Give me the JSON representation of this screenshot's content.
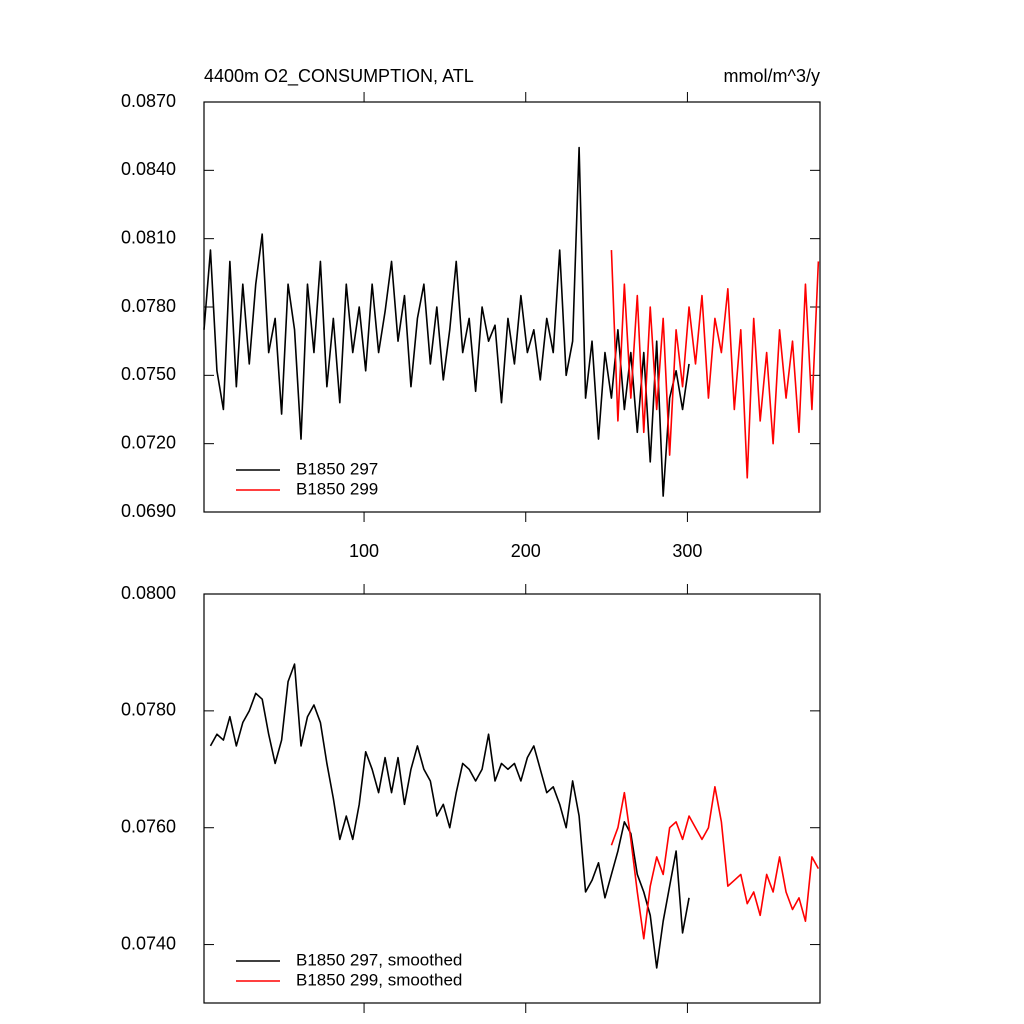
{
  "chart_data": [
    {
      "type": "line",
      "title": "4400m O2_CONSUMPTION, ATL",
      "units": "mmol/m^3/y",
      "legend": "lower left",
      "x": [
        1,
        5,
        9,
        13,
        17,
        21,
        25,
        29,
        33,
        37,
        41,
        45,
        49,
        53,
        57,
        61,
        65,
        69,
        73,
        77,
        81,
        85,
        89,
        93,
        97,
        101,
        105,
        109,
        113,
        117,
        121,
        125,
        129,
        133,
        137,
        141,
        145,
        149,
        153,
        157,
        161,
        165,
        169,
        173,
        177,
        181,
        185,
        189,
        193,
        197,
        201,
        205,
        209,
        213,
        217,
        221,
        225,
        229,
        233,
        237,
        241,
        245,
        249,
        253,
        257,
        261,
        265,
        269,
        273,
        277,
        281,
        285,
        289,
        293,
        297,
        301,
        305,
        309,
        313,
        317,
        321,
        325,
        329,
        333,
        337,
        341,
        345,
        349,
        353,
        357,
        361,
        365,
        369,
        373,
        377,
        381
      ],
      "xlim": [
        1,
        382
      ],
      "xticks": [
        100,
        200,
        300
      ],
      "ylim": [
        0.069,
        0.087
      ],
      "yticks": [
        {
          "value": 0.069,
          "label": "0.0690"
        },
        {
          "value": 0.072,
          "label": "0.0720"
        },
        {
          "value": 0.075,
          "label": "0.0750"
        },
        {
          "value": 0.078,
          "label": "0.0780"
        },
        {
          "value": 0.081,
          "label": "0.0810"
        },
        {
          "value": 0.084,
          "label": "0.0840"
        },
        {
          "value": 0.087,
          "label": "0.0870"
        }
      ],
      "series": [
        {
          "name": "B1850 297",
          "color": "#000000",
          "values": [
            0.077,
            0.0805,
            0.0752,
            0.0735,
            0.08,
            0.0745,
            0.079,
            0.0755,
            0.079,
            0.0812,
            0.076,
            0.0775,
            0.0733,
            0.079,
            0.077,
            0.0722,
            0.079,
            0.076,
            0.08,
            0.0745,
            0.0775,
            0.0738,
            0.079,
            0.076,
            0.078,
            0.0752,
            0.079,
            0.076,
            0.0778,
            0.08,
            0.0765,
            0.0785,
            0.0745,
            0.0775,
            0.079,
            0.0755,
            0.078,
            0.0748,
            0.077,
            0.08,
            0.076,
            0.0775,
            0.0743,
            0.078,
            0.0765,
            0.0772,
            0.0738,
            0.0775,
            0.0755,
            0.0785,
            0.076,
            0.077,
            0.0748,
            0.0775,
            0.076,
            0.0805,
            0.075,
            0.0765,
            0.085,
            0.074,
            0.0765,
            0.0722,
            0.076,
            0.074,
            0.077,
            0.0735,
            0.076,
            0.0725,
            0.076,
            0.0712,
            0.0765,
            0.0697,
            0.074,
            0.0752,
            0.0735,
            0.0755,
            null,
            null,
            null,
            null,
            null,
            null,
            null,
            null,
            null,
            null,
            null,
            null,
            null,
            null,
            null,
            null,
            null,
            null,
            null,
            null
          ]
        },
        {
          "name": "B1850 299",
          "color": "#ff0000",
          "values": [
            null,
            null,
            null,
            null,
            null,
            null,
            null,
            null,
            null,
            null,
            null,
            null,
            null,
            null,
            null,
            null,
            null,
            null,
            null,
            null,
            null,
            null,
            null,
            null,
            null,
            null,
            null,
            null,
            null,
            null,
            null,
            null,
            null,
            null,
            null,
            null,
            null,
            null,
            null,
            null,
            null,
            null,
            null,
            null,
            null,
            null,
            null,
            null,
            null,
            null,
            null,
            null,
            null,
            null,
            null,
            null,
            null,
            null,
            null,
            null,
            null,
            null,
            null,
            0.0805,
            0.073,
            0.079,
            0.074,
            0.0785,
            0.0725,
            0.078,
            0.0735,
            0.0775,
            0.0715,
            0.077,
            0.0745,
            0.078,
            0.0755,
            0.0785,
            0.074,
            0.0775,
            0.076,
            0.0788,
            0.0735,
            0.077,
            0.0705,
            0.0775,
            0.073,
            0.076,
            0.072,
            0.077,
            0.074,
            0.0765,
            0.0725,
            0.079,
            0.0735,
            0.08
          ]
        }
      ]
    },
    {
      "type": "line",
      "legend": "lower left",
      "x": [
        1,
        5,
        9,
        13,
        17,
        21,
        25,
        29,
        33,
        37,
        41,
        45,
        49,
        53,
        57,
        61,
        65,
        69,
        73,
        77,
        81,
        85,
        89,
        93,
        97,
        101,
        105,
        109,
        113,
        117,
        121,
        125,
        129,
        133,
        137,
        141,
        145,
        149,
        153,
        157,
        161,
        165,
        169,
        173,
        177,
        181,
        185,
        189,
        193,
        197,
        201,
        205,
        209,
        213,
        217,
        221,
        225,
        229,
        233,
        237,
        241,
        245,
        249,
        253,
        257,
        261,
        265,
        269,
        273,
        277,
        281,
        285,
        289,
        293,
        297,
        301,
        305,
        309,
        313,
        317,
        321,
        325,
        329,
        333,
        337,
        341,
        345,
        349,
        353,
        357,
        361,
        365,
        369,
        373,
        377,
        381
      ],
      "xlim": [
        1,
        382
      ],
      "xticks": [
        100,
        200,
        300
      ],
      "ylim": [
        0.073,
        0.08
      ],
      "yticks": [
        {
          "value": 0.074,
          "label": "0.0740"
        },
        {
          "value": 0.076,
          "label": "0.0760"
        },
        {
          "value": 0.078,
          "label": "0.0780"
        },
        {
          "value": 0.08,
          "label": "0.0800"
        }
      ],
      "series": [
        {
          "name": "B1850 297, smoothed",
          "color": "#000000",
          "values": [
            null,
            0.0774,
            0.0776,
            0.0775,
            0.0779,
            0.0774,
            0.0778,
            0.078,
            0.0783,
            0.0782,
            0.0776,
            0.0771,
            0.0775,
            0.0785,
            0.0788,
            0.0774,
            0.0779,
            0.0781,
            0.0778,
            0.0771,
            0.0765,
            0.0758,
            0.0762,
            0.0758,
            0.0764,
            0.0773,
            0.077,
            0.0766,
            0.0772,
            0.0766,
            0.0772,
            0.0764,
            0.077,
            0.0774,
            0.077,
            0.0768,
            0.0762,
            0.0764,
            0.076,
            0.0766,
            0.0771,
            0.077,
            0.0768,
            0.077,
            0.0776,
            0.0768,
            0.0771,
            0.077,
            0.0771,
            0.0768,
            0.0772,
            0.0774,
            0.077,
            0.0766,
            0.0767,
            0.0764,
            0.076,
            0.0768,
            0.0762,
            0.0749,
            0.0751,
            0.0754,
            0.0748,
            0.0752,
            0.0756,
            0.0761,
            0.0759,
            0.0752,
            0.0749,
            0.0745,
            0.0736,
            0.0744,
            0.075,
            0.0756,
            0.0742,
            0.0748,
            null,
            null,
            null,
            null,
            null,
            null,
            null,
            null,
            null,
            null,
            null,
            null,
            null,
            null,
            null,
            null,
            null,
            null,
            null,
            null
          ]
        },
        {
          "name": "B1850 299, smoothed",
          "color": "#ff0000",
          "values": [
            null,
            null,
            null,
            null,
            null,
            null,
            null,
            null,
            null,
            null,
            null,
            null,
            null,
            null,
            null,
            null,
            null,
            null,
            null,
            null,
            null,
            null,
            null,
            null,
            null,
            null,
            null,
            null,
            null,
            null,
            null,
            null,
            null,
            null,
            null,
            null,
            null,
            null,
            null,
            null,
            null,
            null,
            null,
            null,
            null,
            null,
            null,
            null,
            null,
            null,
            null,
            null,
            null,
            null,
            null,
            null,
            null,
            null,
            null,
            null,
            null,
            null,
            null,
            0.0757,
            0.076,
            0.0766,
            0.0758,
            0.0749,
            0.0741,
            0.075,
            0.0755,
            0.0752,
            0.076,
            0.0761,
            0.0758,
            0.0762,
            0.076,
            0.0758,
            0.076,
            0.0767,
            0.0761,
            0.075,
            0.0751,
            0.0752,
            0.0747,
            0.0749,
            0.0745,
            0.0752,
            0.0749,
            0.0755,
            0.0749,
            0.0746,
            0.0748,
            0.0744,
            0.0755,
            0.0753
          ]
        }
      ]
    }
  ]
}
